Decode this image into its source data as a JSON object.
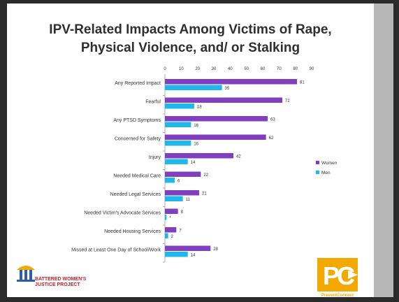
{
  "slide": {
    "title_line1": "IPV-Related Impacts Among Victims of Rape,",
    "title_line2": "Physical Violence, and/ or Stalking"
  },
  "logos": {
    "bwjp_line1": "BATTERED WOMEN'S",
    "bwjp_line2": "JUSTICE PROJECT",
    "pc_caption": "PreventConnect"
  },
  "colors": {
    "women": "#7f3fbf",
    "men": "#1fb8e8",
    "background": "#ffffff",
    "frame": "#2b2b2b",
    "bwjp_red": "#c8202c",
    "bwjp_blue": "#2f5ea8",
    "pc_gold": "#f2a900"
  },
  "chart_data": {
    "type": "bar",
    "orientation": "horizontal",
    "categories": [
      "Any Reported Impact",
      "Fearful",
      "Any PTSD Symptoms",
      "Concerned for Safety",
      "Injury",
      "Needed Medical Care",
      "Needed Legal Services",
      "Needed Victim's Advocate Services",
      "Needed Housing Services",
      "Missed at Least One Day of School/Work"
    ],
    "series": [
      {
        "name": "Women",
        "values": [
          81,
          72,
          63,
          62,
          42,
          22,
          21,
          8,
          7,
          28
        ],
        "labels": [
          "81",
          "72",
          "63",
          "62",
          "42",
          "22",
          "21",
          "8",
          "7",
          "28"
        ]
      },
      {
        "name": "Men",
        "values": [
          35,
          18,
          16,
          16,
          14,
          6,
          11,
          1,
          2,
          14
        ],
        "labels": [
          "35",
          "18",
          "16",
          "16",
          "14",
          "6",
          "11",
          "*",
          "2",
          "14"
        ]
      }
    ],
    "xlim": [
      0,
      90
    ],
    "xticks": [
      0,
      10,
      20,
      30,
      40,
      50,
      60,
      70,
      80,
      90
    ],
    "axis_position": "top",
    "grid": false,
    "legend_position": "right"
  }
}
